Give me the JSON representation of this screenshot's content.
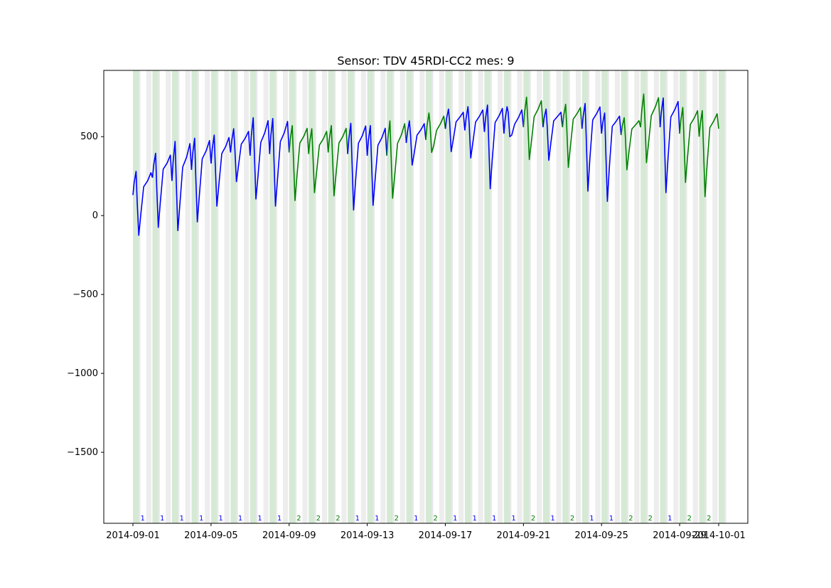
{
  "chart_data": {
    "type": "line",
    "title": "Sensor: TDV 45RDI-CC2 mes: 9",
    "xlabel": "",
    "ylabel": "",
    "x_range": [
      "2014-09-01",
      "2014-10-01"
    ],
    "ylim": [
      -1950,
      920
    ],
    "yticks": [
      500,
      0,
      -500,
      -1000,
      -1500
    ],
    "ytick_labels": [
      "500",
      "0",
      "−500",
      "−1000",
      "−1500"
    ],
    "xticks": [
      "2014-09-01",
      "2014-09-05",
      "2014-09-09",
      "2014-09-13",
      "2014-09-17",
      "2014-09-21",
      "2014-09-25",
      "2014-09-29",
      "2014-10-01"
    ],
    "xtick_labels": [
      "2014-09-01",
      "2014-09-05",
      "2014-09-09",
      "2014-09-13",
      "2014-09-17",
      "2014-09-21",
      "2014-09-25",
      "2014-09-29",
      "2014-10-01"
    ],
    "grid": false,
    "colors": {
      "class_1": "#0000ff",
      "class_2": "#008000",
      "band_gray": "#cccccc",
      "band_green": "#88c088"
    },
    "daily_data": [
      {
        "date": "2014-09-01",
        "label": "1",
        "start": 130,
        "peak": 280,
        "min": -125
      },
      {
        "date": "2014-09-02",
        "label": "1",
        "start": 240,
        "peak": 395,
        "min": -75
      },
      {
        "date": "2014-09-03",
        "label": "1",
        "start": 220,
        "peak": 470,
        "min": -95
      },
      {
        "date": "2014-09-04",
        "label": "1",
        "start": 290,
        "peak": 490,
        "min": -40
      },
      {
        "date": "2014-09-05",
        "label": "1",
        "start": 330,
        "peak": 510,
        "min": 60
      },
      {
        "date": "2014-09-06",
        "label": "1",
        "start": 400,
        "peak": 550,
        "min": 215
      },
      {
        "date": "2014-09-07",
        "label": "1",
        "start": 380,
        "peak": 620,
        "min": 105
      },
      {
        "date": "2014-09-08",
        "label": "1",
        "start": 390,
        "peak": 615,
        "min": 60
      },
      {
        "date": "2014-09-09",
        "label": "2",
        "start": 400,
        "peak": 570,
        "min": 95
      },
      {
        "date": "2014-09-10",
        "label": "2",
        "start": 390,
        "peak": 550,
        "min": 145
      },
      {
        "date": "2014-09-11",
        "label": "2",
        "start": 400,
        "peak": 570,
        "min": 125
      },
      {
        "date": "2014-09-12",
        "label": "1",
        "start": 390,
        "peak": 585,
        "min": 35
      },
      {
        "date": "2014-09-13",
        "label": "1",
        "start": 380,
        "peak": 570,
        "min": 65
      },
      {
        "date": "2014-09-14",
        "label": "2",
        "start": 380,
        "peak": 600,
        "min": 110
      },
      {
        "date": "2014-09-15",
        "label": "1",
        "start": 460,
        "peak": 600,
        "min": 320
      },
      {
        "date": "2014-09-16",
        "label": "2",
        "start": 480,
        "peak": 650,
        "min": 400
      },
      {
        "date": "2014-09-17",
        "label": "1",
        "start": 550,
        "peak": 675,
        "min": 405
      },
      {
        "date": "2014-09-18",
        "label": "1",
        "start": 540,
        "peak": 690,
        "min": 365
      },
      {
        "date": "2014-09-19",
        "label": "1",
        "start": 530,
        "peak": 700,
        "min": 170
      },
      {
        "date": "2014-09-20",
        "label": "1",
        "start": 520,
        "peak": 690,
        "min": 500
      },
      {
        "date": "2014-09-21",
        "label": "2",
        "start": 560,
        "peak": 750,
        "min": 355
      },
      {
        "date": "2014-09-22",
        "label": "1",
        "start": 560,
        "peak": 675,
        "min": 350
      },
      {
        "date": "2014-09-23",
        "label": "2",
        "start": 560,
        "peak": 705,
        "min": 305
      },
      {
        "date": "2014-09-24",
        "label": "1",
        "start": 550,
        "peak": 710,
        "min": 155
      },
      {
        "date": "2014-09-25",
        "label": "1",
        "start": 520,
        "peak": 650,
        "min": 90
      },
      {
        "date": "2014-09-26",
        "label": "2",
        "start": 510,
        "peak": 620,
        "min": 290
      },
      {
        "date": "2014-09-27",
        "label": "2",
        "start": 560,
        "peak": 770,
        "min": 335
      },
      {
        "date": "2014-09-28",
        "label": "1",
        "start": 560,
        "peak": 745,
        "min": 145
      },
      {
        "date": "2014-09-29",
        "label": "2",
        "start": 520,
        "peak": 685,
        "min": 210
      },
      {
        "date": "2014-09-30",
        "label": "2",
        "start": 500,
        "peak": 665,
        "min": 120
      }
    ],
    "end_value": 550
  }
}
